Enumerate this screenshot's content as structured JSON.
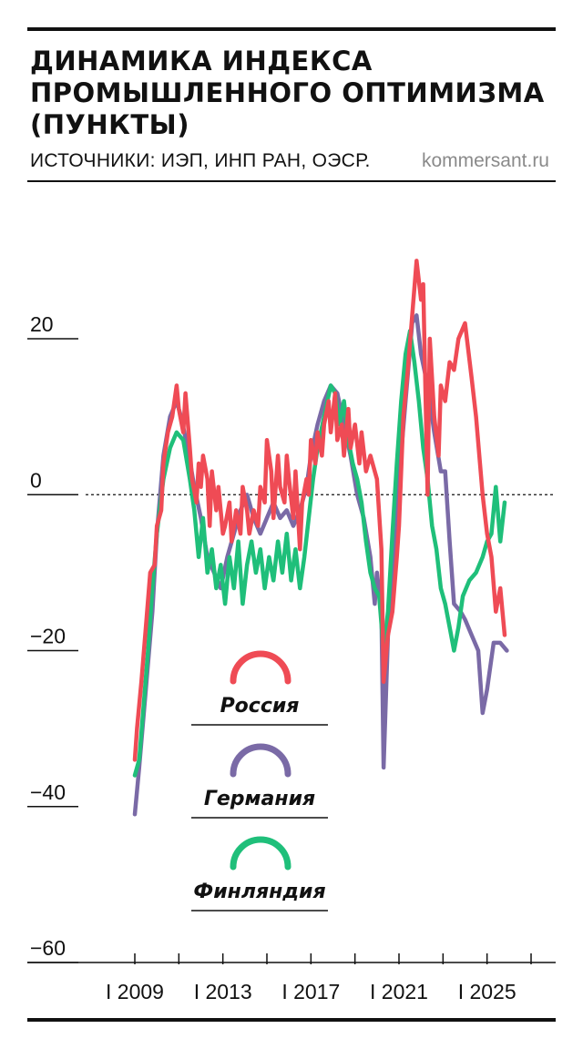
{
  "header": {
    "title": "ДИНАМИКА ИНДЕКСА ПРОМЫШЛЕННОГО ОПТИМИЗМА (ПУНКТЫ)",
    "source": "ИСТОЧНИКИ: ИЭП, ИНП РАН, ОЭСР.",
    "site": "kommersant.ru"
  },
  "chart_data": {
    "type": "line",
    "title": "ДИНАМИКА ИНДЕКСА ПРОМЫШЛЕННОГО ОПТИМИЗМА (ПУНКТЫ)",
    "xlabel": "",
    "ylabel": "",
    "xlim": [
      2009,
      2027
    ],
    "ylim": [
      -60,
      20
    ],
    "y_ticks": [
      {
        "value": 20,
        "label": "20"
      },
      {
        "value": 0,
        "label": "0"
      },
      {
        "value": -20,
        "label": "−20"
      },
      {
        "value": -40,
        "label": "−40"
      },
      {
        "value": -60,
        "label": "−60"
      }
    ],
    "x_ticks": [
      2009,
      2011,
      2013,
      2015,
      2017,
      2019,
      2021,
      2023,
      2025,
      2027
    ],
    "x_labels": [
      {
        "value": 2009,
        "label": "I 2009"
      },
      {
        "value": 2013,
        "label": "I 2013"
      },
      {
        "value": 2017,
        "label": "I 2017"
      },
      {
        "value": 2021,
        "label": "I 2021"
      },
      {
        "value": 2025,
        "label": "I 2025"
      }
    ],
    "zero_line": true,
    "legend": "inside-bottom-left",
    "series": [
      {
        "name": "Россия",
        "color": "#ef4b55",
        "points": [
          [
            2009.0,
            -34
          ],
          [
            2009.1,
            -30
          ],
          [
            2009.3,
            -24
          ],
          [
            2009.5,
            -17
          ],
          [
            2009.7,
            -10
          ],
          [
            2009.9,
            -9
          ],
          [
            2010.0,
            -4
          ],
          [
            2010.2,
            -2
          ],
          [
            2010.3,
            4
          ],
          [
            2010.5,
            8
          ],
          [
            2010.7,
            10
          ],
          [
            2010.9,
            14
          ],
          [
            2011.0,
            11
          ],
          [
            2011.2,
            8
          ],
          [
            2011.3,
            13
          ],
          [
            2011.5,
            6
          ],
          [
            2011.6,
            2
          ],
          [
            2011.8,
            -1
          ],
          [
            2011.9,
            4
          ],
          [
            2012.0,
            1
          ],
          [
            2012.1,
            5
          ],
          [
            2012.3,
            2
          ],
          [
            2012.4,
            -4
          ],
          [
            2012.5,
            3
          ],
          [
            2012.7,
            -2
          ],
          [
            2012.8,
            1
          ],
          [
            2013.0,
            -5
          ],
          [
            2013.1,
            -4
          ],
          [
            2013.3,
            -1
          ],
          [
            2013.4,
            -6
          ],
          [
            2013.6,
            -2
          ],
          [
            2013.8,
            -5
          ],
          [
            2013.9,
            1
          ],
          [
            2014.1,
            -2
          ],
          [
            2014.2,
            -5
          ],
          [
            2014.4,
            -2
          ],
          [
            2014.6,
            -4
          ],
          [
            2014.7,
            1
          ],
          [
            2014.9,
            -1
          ],
          [
            2015.0,
            7
          ],
          [
            2015.2,
            3
          ],
          [
            2015.3,
            -3
          ],
          [
            2015.5,
            5
          ],
          [
            2015.6,
            1
          ],
          [
            2015.8,
            -1
          ],
          [
            2015.9,
            5
          ],
          [
            2016.0,
            2
          ],
          [
            2016.2,
            -3
          ],
          [
            2016.3,
            3
          ],
          [
            2016.5,
            -7
          ],
          [
            2016.6,
            -1
          ],
          [
            2016.8,
            2
          ],
          [
            2016.9,
            0
          ],
          [
            2017.0,
            7
          ],
          [
            2017.2,
            4
          ],
          [
            2017.3,
            8
          ],
          [
            2017.5,
            5
          ],
          [
            2017.6,
            9
          ],
          [
            2017.8,
            12
          ],
          [
            2017.9,
            8
          ],
          [
            2018.1,
            13
          ],
          [
            2018.2,
            7
          ],
          [
            2018.4,
            9
          ],
          [
            2018.5,
            5
          ],
          [
            2018.7,
            11
          ],
          [
            2018.8,
            6
          ],
          [
            2019.0,
            9
          ],
          [
            2019.2,
            4
          ],
          [
            2019.3,
            8
          ],
          [
            2019.5,
            3
          ],
          [
            2019.7,
            5
          ],
          [
            2019.9,
            3
          ],
          [
            2020.0,
            2
          ],
          [
            2020.2,
            -7
          ],
          [
            2020.3,
            -24
          ],
          [
            2020.5,
            -18
          ],
          [
            2020.7,
            -15
          ],
          [
            2020.9,
            -8
          ],
          [
            2021.0,
            -4
          ],
          [
            2021.2,
            10
          ],
          [
            2021.4,
            16
          ],
          [
            2021.6,
            23
          ],
          [
            2021.8,
            30
          ],
          [
            2022.0,
            25
          ],
          [
            2022.1,
            27
          ],
          [
            2022.3,
            0
          ],
          [
            2022.4,
            20
          ],
          [
            2022.6,
            10
          ],
          [
            2022.8,
            5
          ],
          [
            2022.9,
            14
          ],
          [
            2023.1,
            12
          ],
          [
            2023.3,
            17
          ],
          [
            2023.5,
            16
          ],
          [
            2023.7,
            20
          ],
          [
            2024.0,
            22
          ],
          [
            2024.3,
            15
          ],
          [
            2024.5,
            10
          ],
          [
            2024.8,
            0
          ],
          [
            2025.0,
            -5
          ],
          [
            2025.2,
            -8
          ],
          [
            2025.4,
            -15
          ],
          [
            2025.6,
            -12
          ],
          [
            2025.8,
            -18
          ]
        ]
      },
      {
        "name": "Германия",
        "color": "#7a6aa6",
        "points": [
          [
            2009.0,
            -41
          ],
          [
            2009.2,
            -35
          ],
          [
            2009.5,
            -25
          ],
          [
            2009.8,
            -15
          ],
          [
            2010.0,
            -5
          ],
          [
            2010.3,
            5
          ],
          [
            2010.6,
            10
          ],
          [
            2010.9,
            12
          ],
          [
            2011.1,
            10
          ],
          [
            2011.4,
            6
          ],
          [
            2011.7,
            1
          ],
          [
            2012.0,
            -3
          ],
          [
            2012.3,
            -8
          ],
          [
            2012.6,
            -10
          ],
          [
            2012.9,
            -12
          ],
          [
            2013.2,
            -8
          ],
          [
            2013.5,
            -5
          ],
          [
            2013.8,
            -2
          ],
          [
            2014.1,
            0
          ],
          [
            2014.4,
            -3
          ],
          [
            2014.7,
            -5
          ],
          [
            2015.0,
            -3
          ],
          [
            2015.3,
            -1
          ],
          [
            2015.6,
            -3
          ],
          [
            2015.9,
            -2
          ],
          [
            2016.2,
            -4
          ],
          [
            2016.5,
            -2
          ],
          [
            2016.8,
            1
          ],
          [
            2017.0,
            5
          ],
          [
            2017.3,
            9
          ],
          [
            2017.6,
            12
          ],
          [
            2017.9,
            14
          ],
          [
            2018.2,
            13
          ],
          [
            2018.5,
            9
          ],
          [
            2018.8,
            5
          ],
          [
            2019.1,
            0
          ],
          [
            2019.4,
            -3
          ],
          [
            2019.7,
            -8
          ],
          [
            2019.9,
            -14
          ],
          [
            2020.0,
            -10
          ],
          [
            2020.2,
            -15
          ],
          [
            2020.3,
            -35
          ],
          [
            2020.5,
            -18
          ],
          [
            2020.7,
            -10
          ],
          [
            2020.9,
            -4
          ],
          [
            2021.0,
            2
          ],
          [
            2021.3,
            12
          ],
          [
            2021.6,
            22
          ],
          [
            2021.8,
            23
          ],
          [
            2022.0,
            18
          ],
          [
            2022.3,
            14
          ],
          [
            2022.6,
            8
          ],
          [
            2022.9,
            3
          ],
          [
            2023.1,
            3
          ],
          [
            2023.3,
            -6
          ],
          [
            2023.5,
            -14
          ],
          [
            2023.8,
            -15
          ],
          [
            2024.0,
            -16
          ],
          [
            2024.3,
            -18
          ],
          [
            2024.6,
            -20
          ],
          [
            2024.8,
            -28
          ],
          [
            2025.0,
            -25
          ],
          [
            2025.3,
            -19
          ],
          [
            2025.6,
            -19
          ],
          [
            2025.9,
            -20
          ]
        ]
      },
      {
        "name": "Финляндия",
        "color": "#1fbf7a",
        "points": [
          [
            2009.0,
            -36
          ],
          [
            2009.2,
            -34
          ],
          [
            2009.4,
            -27
          ],
          [
            2009.6,
            -20
          ],
          [
            2009.8,
            -12
          ],
          [
            2010.0,
            -5
          ],
          [
            2010.3,
            2
          ],
          [
            2010.6,
            6
          ],
          [
            2010.9,
            8
          ],
          [
            2011.2,
            7
          ],
          [
            2011.5,
            2
          ],
          [
            2011.7,
            -2
          ],
          [
            2011.9,
            -8
          ],
          [
            2012.1,
            -3
          ],
          [
            2012.3,
            -10
          ],
          [
            2012.5,
            -7
          ],
          [
            2012.7,
            -12
          ],
          [
            2012.9,
            -9
          ],
          [
            2013.1,
            -14
          ],
          [
            2013.3,
            -8
          ],
          [
            2013.5,
            -12
          ],
          [
            2013.7,
            -6
          ],
          [
            2013.9,
            -14
          ],
          [
            2014.1,
            -9
          ],
          [
            2014.3,
            -6
          ],
          [
            2014.5,
            -10
          ],
          [
            2014.7,
            -7
          ],
          [
            2014.9,
            -12
          ],
          [
            2015.1,
            -8
          ],
          [
            2015.3,
            -11
          ],
          [
            2015.5,
            -6
          ],
          [
            2015.7,
            -10
          ],
          [
            2015.9,
            -5
          ],
          [
            2016.1,
            -11
          ],
          [
            2016.3,
            -7
          ],
          [
            2016.5,
            -12
          ],
          [
            2016.7,
            -8
          ],
          [
            2016.9,
            -3
          ],
          [
            2017.1,
            2
          ],
          [
            2017.3,
            6
          ],
          [
            2017.6,
            10
          ],
          [
            2017.9,
            14
          ],
          [
            2018.1,
            13
          ],
          [
            2018.3,
            9
          ],
          [
            2018.5,
            12
          ],
          [
            2018.7,
            7
          ],
          [
            2018.9,
            4
          ],
          [
            2019.1,
            2
          ],
          [
            2019.3,
            -1
          ],
          [
            2019.5,
            -6
          ],
          [
            2019.7,
            -10
          ],
          [
            2019.9,
            -12
          ],
          [
            2020.1,
            -13
          ],
          [
            2020.3,
            -20
          ],
          [
            2020.5,
            -15
          ],
          [
            2020.7,
            -5
          ],
          [
            2020.9,
            4
          ],
          [
            2021.1,
            12
          ],
          [
            2021.3,
            18
          ],
          [
            2021.5,
            21
          ],
          [
            2021.7,
            17
          ],
          [
            2021.9,
            12
          ],
          [
            2022.1,
            6
          ],
          [
            2022.3,
            2
          ],
          [
            2022.5,
            -4
          ],
          [
            2022.7,
            -7
          ],
          [
            2022.9,
            -12
          ],
          [
            2023.1,
            -14
          ],
          [
            2023.3,
            -17
          ],
          [
            2023.5,
            -20
          ],
          [
            2023.7,
            -17
          ],
          [
            2023.9,
            -13
          ],
          [
            2024.2,
            -11
          ],
          [
            2024.5,
            -10
          ],
          [
            2024.8,
            -8
          ],
          [
            2025.0,
            -6
          ],
          [
            2025.2,
            -5
          ],
          [
            2025.4,
            1
          ],
          [
            2025.6,
            -6
          ],
          [
            2025.8,
            -1
          ]
        ]
      }
    ]
  }
}
